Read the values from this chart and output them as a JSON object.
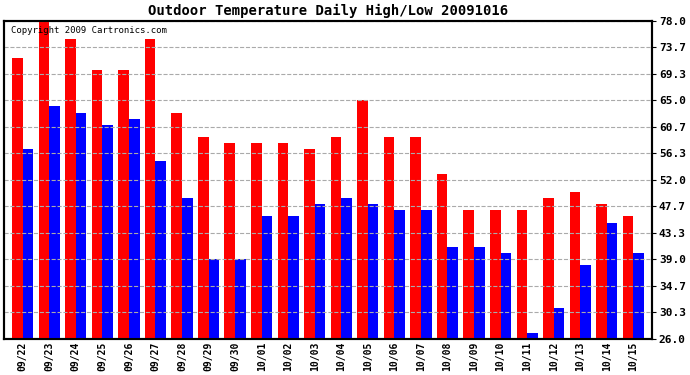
{
  "title": "Outdoor Temperature Daily High/Low 20091016",
  "copyright": "Copyright 2009 Cartronics.com",
  "dates": [
    "09/22",
    "09/23",
    "09/24",
    "09/25",
    "09/26",
    "09/27",
    "09/28",
    "09/29",
    "09/30",
    "10/01",
    "10/02",
    "10/03",
    "10/04",
    "10/05",
    "10/06",
    "10/07",
    "10/08",
    "10/09",
    "10/10",
    "10/11",
    "10/12",
    "10/13",
    "10/14",
    "10/15"
  ],
  "highs": [
    72,
    78,
    75,
    70,
    70,
    75,
    63,
    59,
    58,
    58,
    58,
    57,
    59,
    65,
    59,
    59,
    53,
    47,
    47,
    47,
    49,
    50,
    48,
    46
  ],
  "lows": [
    57,
    64,
    63,
    61,
    62,
    55,
    49,
    39,
    39,
    46,
    46,
    48,
    49,
    48,
    47,
    47,
    41,
    41,
    40,
    27,
    31,
    38,
    45,
    40
  ],
  "high_color": "#ff0000",
  "low_color": "#0000ff",
  "bg_color": "#ffffff",
  "grid_color": "#aaaaaa",
  "yticks": [
    26.0,
    30.3,
    34.7,
    39.0,
    43.3,
    47.7,
    52.0,
    56.3,
    60.7,
    65.0,
    69.3,
    73.7,
    78.0
  ],
  "ymin": 26.0,
  "ymax": 78.0
}
